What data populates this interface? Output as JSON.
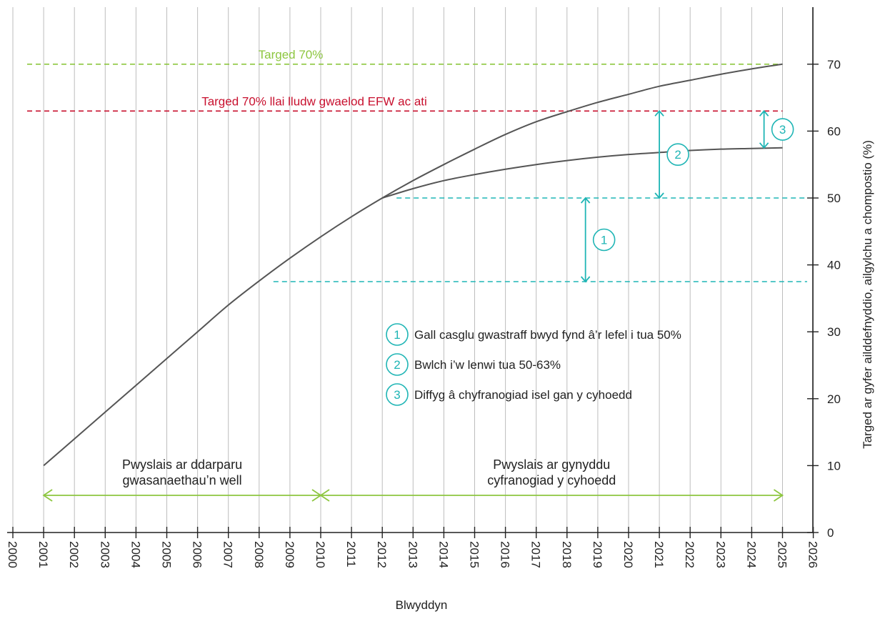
{
  "chart_data": {
    "type": "line",
    "xlabel": "Blwyddyn",
    "ylabel": "Targed ar gyfer ailddefnyddio, ailgylchu a chompostio (%)",
    "xlim": [
      2000,
      2026
    ],
    "ylim": [
      0,
      70
    ],
    "x_ticks": [
      "2000",
      "2001",
      "2002",
      "2003",
      "2004",
      "2005",
      "2006",
      "2007",
      "2008",
      "2009",
      "2010",
      "2011",
      "2012",
      "2013",
      "2014",
      "2015",
      "2016",
      "2017",
      "2018",
      "2019",
      "2020",
      "2021",
      "2022",
      "2023",
      "2024",
      "2025",
      "2026"
    ],
    "y_ticks": [
      "0",
      "10",
      "20",
      "30",
      "40",
      "50",
      "60",
      "70"
    ],
    "grid": "vertical",
    "series": [
      {
        "x": [
          2001,
          2002,
          2003,
          2004,
          2005,
          2006,
          2007,
          2008,
          2009,
          2010,
          2011,
          2012,
          2013,
          2014,
          2015,
          2016,
          2017,
          2018,
          2019,
          2020,
          2021,
          2022,
          2023,
          2024,
          2025
        ],
        "values": [
          10,
          14,
          18,
          22,
          26,
          30,
          34,
          37.6,
          41,
          44.2,
          47.2,
          50,
          52.6,
          55,
          57.3,
          59.5,
          61.4,
          62.9,
          64.3,
          65.5,
          66.7,
          67.6,
          68.5,
          69.3,
          70
        ],
        "color": "#555555"
      },
      {
        "x": [
          2012,
          2013,
          2014,
          2015,
          2016,
          2017,
          2018,
          2019,
          2020,
          2021,
          2022,
          2023,
          2024,
          2025
        ],
        "values": [
          50,
          51.4,
          52.6,
          53.5,
          54.3,
          55,
          55.6,
          56.1,
          56.5,
          56.8,
          57.1,
          57.3,
          57.4,
          57.5
        ],
        "color": "#555555"
      }
    ],
    "reference_lines": [
      {
        "label": "Targed 70%",
        "y": 70,
        "from": 2000,
        "to": 2025,
        "color": "#8dc63f"
      },
      {
        "label": "Targed 70% llai lludw gwaelod EFW ac ati",
        "y": 63,
        "from": 2000,
        "to": 2025,
        "color": "#c8102e"
      },
      {
        "label": "",
        "y": 50,
        "from": 2012,
        "to": 2025.8,
        "color": "#1fb5b5"
      },
      {
        "label": "",
        "y": 37.5,
        "from": 2008,
        "to": 2025.8,
        "color": "#1fb5b5"
      }
    ],
    "gap_arrows": [
      {
        "marker": "1",
        "x": 2018.6,
        "from": 37.5,
        "to": 50
      },
      {
        "marker": "2",
        "x": 2021,
        "from": 50,
        "to": 63
      },
      {
        "marker": "3",
        "x": 2024.4,
        "from": 57.5,
        "to": 63
      }
    ],
    "legend": [
      {
        "marker": "1",
        "text": "Gall casglu gwastraff bwyd fynd â’r lefel i tua 50%"
      },
      {
        "marker": "2",
        "text": "Bwlch i’w lenwi tua 50-63%"
      },
      {
        "marker": "3",
        "text": "Diffyg â chyfranogiad isel gan y cyhoedd"
      }
    ],
    "phases": [
      {
        "line1": "Pwyslais ar ddarparu",
        "line2": "gwasanaethau’n well",
        "from": 2001,
        "to": 2010
      },
      {
        "line1": "Pwyslais ar gynyddu",
        "line2": "cyfranogiad y cyhoedd",
        "from": 2010,
        "to": 2025
      }
    ],
    "colors": {
      "curve": "#555555",
      "grid": "#bdbdbd",
      "axis": "#222222",
      "green": "#8dc63f",
      "red": "#c8102e",
      "teal": "#1fb5b5"
    }
  }
}
